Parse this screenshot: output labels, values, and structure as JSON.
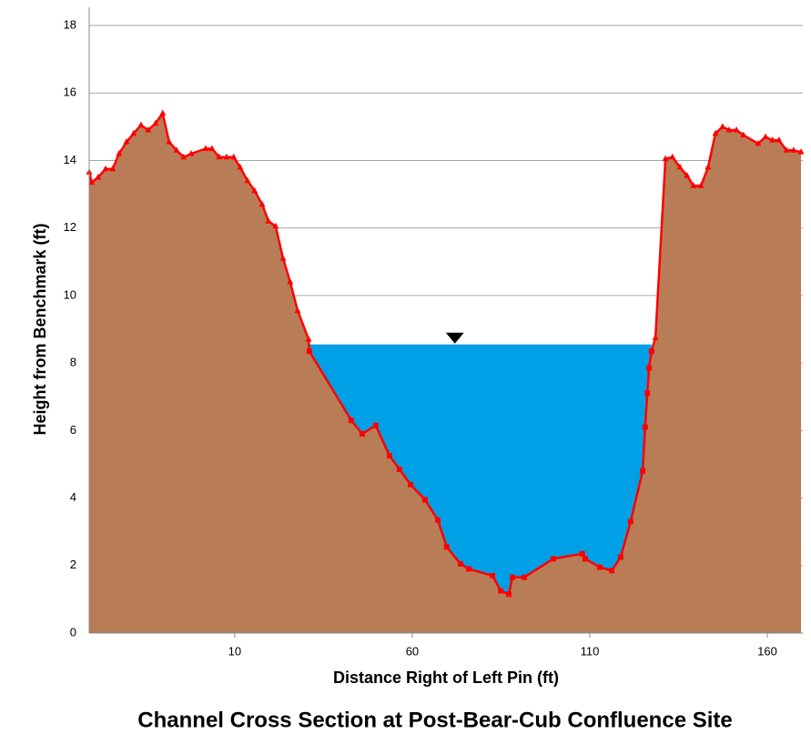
{
  "chart_data": {
    "type": "area",
    "title": "Channel Cross Section at Post-Bear-Cub Confluence Site",
    "x_label": "Distance Right of Left Pin (ft)",
    "y_label": "Height from Benchmark (ft)",
    "xlim": [
      -31,
      170
    ],
    "ylim": [
      0,
      18
    ],
    "xticks": [
      10,
      60,
      110,
      160
    ],
    "yticks": [
      0,
      2,
      4,
      6,
      8,
      10,
      12,
      14,
      16,
      18
    ],
    "grid": true,
    "line_color": "#ff0000",
    "ground_color": "#b87d56",
    "water_color": "#00a0e6",
    "water_level": 8.55,
    "water_marker_x": 72,
    "series": [
      {
        "marker": "triangle",
        "x": [
          -31,
          -30.3,
          -28.5,
          -26.4,
          -24.4,
          -22.6,
          -20.5,
          -18.5,
          -16.4,
          -14.4,
          -12.3,
          -10.3,
          -8.5,
          -6.4,
          -4.4,
          -2.3,
          1.8,
          3.6,
          5.6,
          7.7,
          9.7,
          11.5,
          13.6,
          15.6,
          17.7,
          19.5,
          21.5,
          23.6,
          25.6,
          27.7,
          30.8
        ],
        "values": [
          13.65,
          13.35,
          13.5,
          13.75,
          13.75,
          14.2,
          14.55,
          14.8,
          15.05,
          14.9,
          15.1,
          15.4,
          14.55,
          14.3,
          14.1,
          14.2,
          14.35,
          14.35,
          14.1,
          14.1,
          14.1,
          13.8,
          13.4,
          13.1,
          12.7,
          12.2,
          12.05,
          11.1,
          10.4,
          9.55,
          8.7
        ]
      },
      {
        "marker": "square",
        "x": [
          31.0,
          42.8,
          45.9,
          49.7,
          53.6,
          56.4,
          59.5,
          63.6,
          67.2,
          69.7,
          73.6,
          75.9,
          82.6,
          84.9,
          87.2,
          88.2,
          91.5,
          99.7,
          107.9,
          108.7,
          112.8,
          116.2,
          118.7,
          121.5,
          124.9,
          125.6,
          126.2,
          126.7,
          127.4
        ],
        "values": [
          8.35,
          6.3,
          5.9,
          6.15,
          5.25,
          4.85,
          4.4,
          3.95,
          3.35,
          2.55,
          2.05,
          1.9,
          1.7,
          1.25,
          1.15,
          1.65,
          1.65,
          2.2,
          2.35,
          2.2,
          1.95,
          1.85,
          2.25,
          3.3,
          4.8,
          6.1,
          7.1,
          7.85,
          8.35
        ]
      },
      {
        "marker": "triangle",
        "x": [
          128.5,
          131.3,
          133.3,
          135.4,
          137.4,
          139.2,
          141.3,
          143.3,
          145.4,
          147.4,
          149.2,
          151.3,
          153.3,
          157.4,
          159.5,
          161.5,
          163.3,
          165.4,
          167.4,
          169.5
        ],
        "values": [
          8.75,
          14.05,
          14.1,
          13.8,
          13.55,
          13.25,
          13.25,
          13.8,
          14.8,
          15.0,
          14.9,
          14.9,
          14.75,
          14.5,
          14.7,
          14.6,
          14.6,
          14.3,
          14.3,
          14.25
        ]
      }
    ]
  }
}
